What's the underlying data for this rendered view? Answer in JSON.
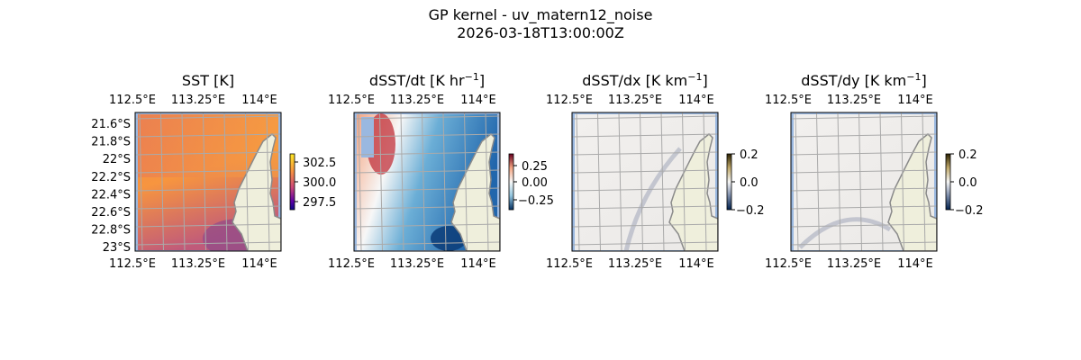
{
  "figure": {
    "title_line1": "GP kernel - uv_matern12_noise",
    "title_line2": "2026-03-18T13:00:00Z"
  },
  "colors": {
    "land": "#efefdc",
    "coast": "#8a8a8a",
    "gridline": "#aaaaaa",
    "nodata_ocean": "#9ab8e0"
  },
  "chart_data": [
    {
      "type": "heatmap",
      "title": "SST [K]",
      "title_sup": "",
      "cmap": "plasma-like",
      "lon_ticks": [
        "112.5°E",
        "113.25°E",
        "114°E"
      ],
      "lat_ticks": [
        "21.6°S",
        "21.8°S",
        "22°S",
        "22.2°S",
        "22.4°S",
        "22.6°S",
        "22.8°S",
        "23°S"
      ],
      "colorbar_ticks": [
        "302.5",
        "300.0",
        "297.5"
      ],
      "colorbar_range": [
        297,
        303
      ]
    },
    {
      "type": "heatmap",
      "title": "dSST/dt [K hr",
      "title_sup": "−1",
      "title_end": "]",
      "cmap": "RdBu_r",
      "lon_ticks": [
        "112.5°E",
        "113.25°E",
        "114°E"
      ],
      "colorbar_ticks": [
        "0.25",
        "0.00",
        "−0.25"
      ],
      "colorbar_range": [
        -0.4,
        0.4
      ]
    },
    {
      "type": "heatmap",
      "title": "dSST/dx [K km",
      "title_sup": "−1",
      "title_end": "]",
      "cmap": "cividis-diverging",
      "lon_ticks": [
        "112.5°E",
        "113.25°E",
        "114°E"
      ],
      "colorbar_ticks": [
        "0.2",
        "0.0",
        "−0.2"
      ],
      "colorbar_range": [
        -0.2,
        0.2
      ]
    },
    {
      "type": "heatmap",
      "title": "dSST/dy [K km",
      "title_sup": "−1",
      "title_end": "]",
      "cmap": "cividis-diverging",
      "lon_ticks": [
        "112.5°E",
        "113.25°E",
        "114°E"
      ],
      "colorbar_ticks": [
        "0.2",
        "0.0",
        "−0.2"
      ],
      "colorbar_range": [
        -0.2,
        0.2
      ]
    }
  ]
}
